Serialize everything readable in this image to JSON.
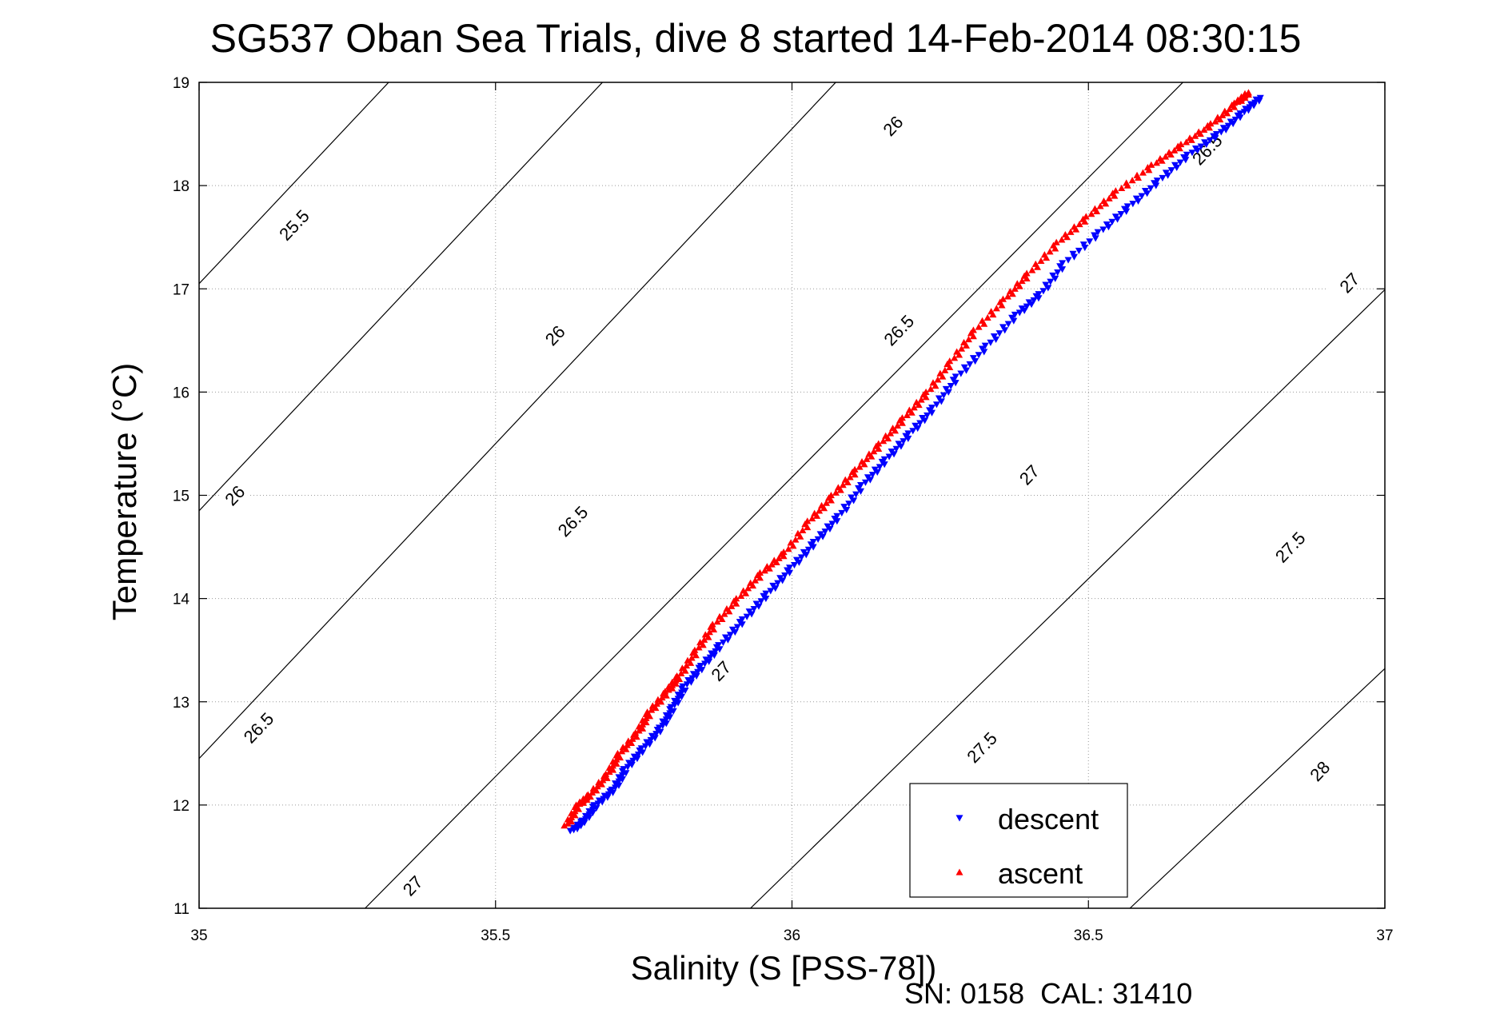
{
  "chart_data": {
    "type": "scatter",
    "title": "SG537 Oban Sea Trials, dive 8 started 14-Feb-2014 08:30:15",
    "xlabel": "Salinity (S [PSS-78])",
    "ylabel": "Temperature (°C)",
    "xlim": [
      35,
      37
    ],
    "ylim": [
      11,
      19
    ],
    "x_ticks": [
      "35",
      "35.5",
      "36",
      "36.5",
      "37"
    ],
    "y_ticks": [
      "11",
      "12",
      "13",
      "14",
      "15",
      "16",
      "17",
      "18",
      "19"
    ],
    "grid": true,
    "legend_position": "bottom-right",
    "series": [
      {
        "name": "descent",
        "color": "#0000ff",
        "marker": "triangle-down",
        "points": [
          [
            35.63,
            11.75
          ],
          [
            35.65,
            11.85
          ],
          [
            35.67,
            12.0
          ],
          [
            35.7,
            12.15
          ],
          [
            35.72,
            12.35
          ],
          [
            35.75,
            12.55
          ],
          [
            35.78,
            12.75
          ],
          [
            35.8,
            12.95
          ],
          [
            35.82,
            13.15
          ],
          [
            35.85,
            13.35
          ],
          [
            35.88,
            13.55
          ],
          [
            35.92,
            13.8
          ],
          [
            35.96,
            14.05
          ],
          [
            36.0,
            14.3
          ],
          [
            36.04,
            14.55
          ],
          [
            36.08,
            14.8
          ],
          [
            36.12,
            15.1
          ],
          [
            36.16,
            15.35
          ],
          [
            36.2,
            15.6
          ],
          [
            36.24,
            15.85
          ],
          [
            36.28,
            16.15
          ],
          [
            36.33,
            16.45
          ],
          [
            36.38,
            16.75
          ],
          [
            36.42,
            16.95
          ],
          [
            36.46,
            17.25
          ],
          [
            36.52,
            17.55
          ],
          [
            36.57,
            17.8
          ],
          [
            36.62,
            18.05
          ],
          [
            36.67,
            18.3
          ],
          [
            36.72,
            18.5
          ],
          [
            36.76,
            18.7
          ],
          [
            36.79,
            18.85
          ]
        ]
      },
      {
        "name": "ascent",
        "color": "#ff0000",
        "marker": "triangle-up",
        "points": [
          [
            35.62,
            11.8
          ],
          [
            35.64,
            12.0
          ],
          [
            35.66,
            12.1
          ],
          [
            35.69,
            12.3
          ],
          [
            35.71,
            12.5
          ],
          [
            35.74,
            12.7
          ],
          [
            35.76,
            12.9
          ],
          [
            35.79,
            13.1
          ],
          [
            35.81,
            13.25
          ],
          [
            35.84,
            13.5
          ],
          [
            35.87,
            13.75
          ],
          [
            35.91,
            14.0
          ],
          [
            35.95,
            14.25
          ],
          [
            35.99,
            14.45
          ],
          [
            36.03,
            14.75
          ],
          [
            36.07,
            15.0
          ],
          [
            36.11,
            15.25
          ],
          [
            36.15,
            15.5
          ],
          [
            36.19,
            15.75
          ],
          [
            36.23,
            16.0
          ],
          [
            36.27,
            16.3
          ],
          [
            36.31,
            16.6
          ],
          [
            36.36,
            16.9
          ],
          [
            36.4,
            17.15
          ],
          [
            36.45,
            17.45
          ],
          [
            36.5,
            17.7
          ],
          [
            36.55,
            17.95
          ],
          [
            36.61,
            18.2
          ],
          [
            36.66,
            18.4
          ],
          [
            36.71,
            18.6
          ],
          [
            36.75,
            18.8
          ],
          [
            36.77,
            18.9
          ]
        ]
      }
    ],
    "contours": [
      {
        "label": "25.5",
        "slope": 6.1,
        "intercept_x": 35.0,
        "intercept_y": 17.05
      },
      {
        "label": "26",
        "slope": 6.1,
        "intercept_x": 35.0,
        "intercept_y": 14.85
      },
      {
        "label": "26.5",
        "slope": 6.1,
        "intercept_x": 35.0,
        "intercept_y": 12.45
      },
      {
        "label": "27",
        "slope": 5.8,
        "intercept_x": 35.28,
        "intercept_y": 11.0
      },
      {
        "label": "27.5",
        "slope": 5.6,
        "intercept_x": 35.93,
        "intercept_y": 11.0
      },
      {
        "label": "28",
        "slope": 5.4,
        "intercept_x": 36.57,
        "intercept_y": 11.0
      }
    ],
    "contour_labels": [
      {
        "text": "25.5",
        "x": 35.16,
        "y": 17.62
      },
      {
        "text": "26",
        "x": 35.6,
        "y": 16.55
      },
      {
        "text": "26",
        "x": 35.06,
        "y": 15.0
      },
      {
        "text": "26",
        "x": 36.17,
        "y": 18.58
      },
      {
        "text": "26.5",
        "x": 35.63,
        "y": 14.75
      },
      {
        "text": "26.5",
        "x": 35.1,
        "y": 12.75
      },
      {
        "text": "26.5",
        "x": 36.18,
        "y": 16.6
      },
      {
        "text": "26.5",
        "x": 36.7,
        "y": 18.35
      },
      {
        "text": "27",
        "x": 35.36,
        "y": 11.22
      },
      {
        "text": "27",
        "x": 35.88,
        "y": 13.3
      },
      {
        "text": "27",
        "x": 36.4,
        "y": 15.2
      },
      {
        "text": "27",
        "x": 36.94,
        "y": 17.06
      },
      {
        "text": "27.5",
        "x": 36.32,
        "y": 12.56
      },
      {
        "text": "27.5",
        "x": 36.84,
        "y": 14.5
      },
      {
        "text": "28",
        "x": 36.89,
        "y": 12.33
      }
    ]
  },
  "footer": {
    "serial": "SN: 0158  CAL: 31410"
  }
}
